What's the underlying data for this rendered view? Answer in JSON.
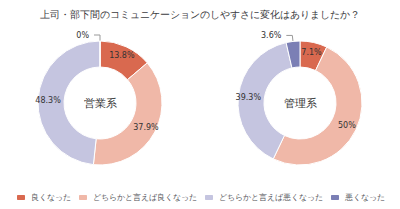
{
  "title": "上司・部下間のコミュニケーションのしやすさに変化はありましたか？",
  "legend": "bottom",
  "chart_data": [
    {
      "type": "donut",
      "title": "営業系",
      "categories": [
        "良くなった",
        "どちらかと言えば良くなった",
        "どちらかと言えば悪くなった",
        "悪くなった"
      ],
      "values": [
        13.8,
        37.9,
        48.3,
        0.0
      ],
      "value_labels": [
        "13.8%",
        "37.9%",
        "48.3%",
        "0%"
      ],
      "colors": [
        "#d9694f",
        "#f0b8a8",
        "#c5c5e0",
        "#7b7fb5"
      ],
      "data_labels": true
    },
    {
      "type": "donut",
      "title": "管理系",
      "categories": [
        "良くなった",
        "どちらかと言えば良くなった",
        "どちらかと言えば悪くなった",
        "悪くなった"
      ],
      "values": [
        7.1,
        50.0,
        39.3,
        3.6
      ],
      "value_labels": [
        "7.1%",
        "50%",
        "39.3%",
        "3.6%"
      ],
      "colors": [
        "#d9694f",
        "#f0b8a8",
        "#c5c5e0",
        "#7b7fb5"
      ],
      "data_labels": true
    }
  ]
}
